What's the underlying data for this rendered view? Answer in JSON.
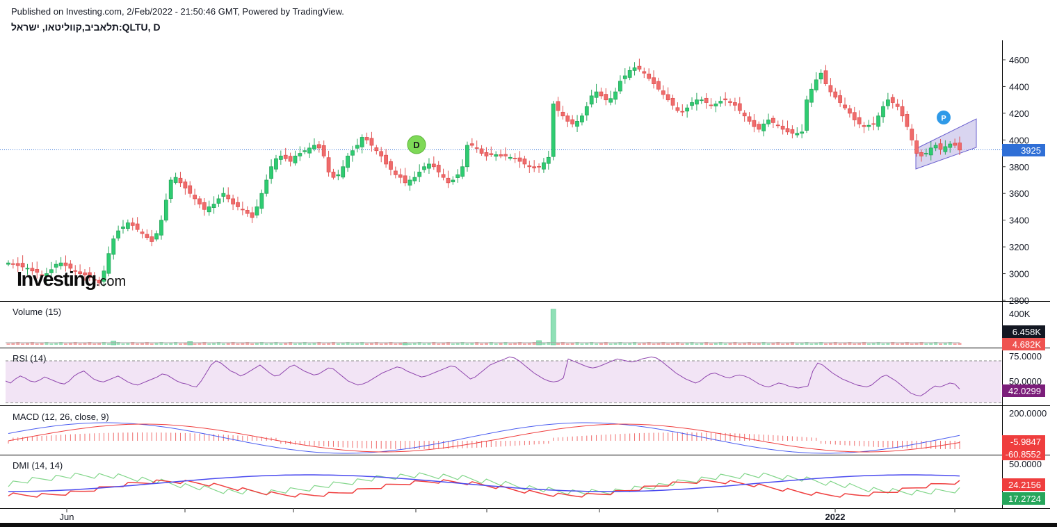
{
  "header": {
    "published": "Published on Investing.com, 2/Feb/2022 - 21:50:46 GMT, Powered by TradingView.",
    "symbol": "תלאביב,קווליטאו, ישראל:QLTU, D"
  },
  "logo": {
    "main": "Investing",
    "suffix": ".com"
  },
  "colors": {
    "up": "#26a65b",
    "down": "#e05252",
    "up_fill": "#2ecc71",
    "down_fill": "#ef6b6b",
    "price_line": "#2f6fd6",
    "rsi": "#8e44ad",
    "macd": "#4a5cf0",
    "signal": "#ef3e3e",
    "dmi_plus": "#82d68a",
    "dmi_minus": "#ef3e3e",
    "adx": "#4a4aef"
  },
  "chart_data": [
    {
      "type": "candlestick",
      "title": "",
      "ylim": [
        2800,
        4700
      ],
      "y_ticks": [
        "4600",
        "4400",
        "4200",
        "4000",
        "3800",
        "3600",
        "3400",
        "3200",
        "3000",
        "2800"
      ],
      "x_labels": [
        "Jun",
        "2022"
      ],
      "last_price": "3925",
      "markers": [
        "D",
        "P"
      ],
      "close_path": [
        3080,
        3070,
        3060,
        3050,
        3040,
        3020,
        3010,
        2990,
        3000,
        3030,
        3070,
        3080,
        3060,
        3040,
        3020,
        3000,
        2990,
        2970,
        2950,
        2930,
        3020,
        3150,
        3260,
        3320,
        3350,
        3380,
        3360,
        3330,
        3300,
        3270,
        3240,
        3300,
        3400,
        3550,
        3700,
        3720,
        3680,
        3640,
        3600,
        3560,
        3520,
        3480,
        3500,
        3520,
        3560,
        3600,
        3560,
        3520,
        3500,
        3480,
        3450,
        3420,
        3500,
        3600,
        3700,
        3800,
        3860,
        3880,
        3860,
        3840,
        3880,
        3900,
        3920,
        3940,
        3960,
        3940,
        3880,
        3760,
        3720,
        3740,
        3800,
        3880,
        3920,
        3960,
        4020,
        4000,
        3960,
        3920,
        3880,
        3820,
        3780,
        3740,
        3720,
        3680,
        3700,
        3720,
        3760,
        3800,
        3820,
        3800,
        3760,
        3720,
        3680,
        3700,
        3740,
        3800,
        3960,
        3960,
        3940,
        3900,
        3880,
        3890,
        3890,
        3880,
        3880,
        3870,
        3860,
        3840,
        3820,
        3800,
        3790,
        3800,
        3830,
        3870,
        4270,
        4220,
        4180,
        4140,
        4120,
        4140,
        4180,
        4250,
        4330,
        4360,
        4330,
        4300,
        4310,
        4360,
        4440,
        4480,
        4520,
        4540,
        4530,
        4500,
        4460,
        4420,
        4380,
        4340,
        4300,
        4260,
        4220,
        4210,
        4240,
        4280,
        4300,
        4300,
        4280,
        4260,
        4270,
        4290,
        4300,
        4280,
        4260,
        4220,
        4180,
        4140,
        4100,
        4080,
        4120,
        4150,
        4130,
        4110,
        4080,
        4060,
        4050,
        4050,
        4060,
        4300,
        4380,
        4450,
        4500,
        4420,
        4360,
        4320,
        4280,
        4240,
        4200,
        4150,
        4120,
        4100,
        4110,
        4120,
        4180,
        4250,
        4300,
        4280,
        4250,
        4180,
        4100,
        4000,
        3900,
        3880,
        3900,
        3940,
        3960,
        3930,
        3950,
        3970,
        3960,
        3925
      ]
    },
    {
      "type": "bar",
      "title": "Volume (15)",
      "y_ticks": [
        "400K"
      ],
      "last_values": [
        "6.458K",
        "4.682K"
      ],
      "spikes": [
        {
          "index": 22,
          "value": 40
        },
        {
          "index": 38,
          "value": 35
        },
        {
          "index": 83,
          "value": 20
        },
        {
          "index": 114,
          "value": 380
        },
        {
          "index": 111,
          "value": 45
        }
      ]
    },
    {
      "type": "line",
      "title": "RSI (14)",
      "y_ticks": [
        "75.0000",
        "50.0000"
      ],
      "last_value": "42.0299",
      "band": [
        30,
        70
      ],
      "values": [
        50,
        48,
        52,
        55,
        53,
        50,
        49,
        51,
        54,
        52,
        50,
        48,
        47,
        50,
        55,
        58,
        60,
        56,
        52,
        50,
        49,
        51,
        53,
        55,
        52,
        49,
        47,
        46,
        48,
        50,
        52,
        54,
        57,
        56,
        53,
        50,
        48,
        47,
        45,
        44,
        50,
        58,
        66,
        70,
        68,
        64,
        60,
        58,
        55,
        57,
        60,
        63,
        66,
        62,
        58,
        55,
        56,
        60,
        64,
        66,
        63,
        60,
        58,
        56,
        57,
        60,
        63,
        62,
        58,
        54,
        50,
        48,
        46,
        47,
        49,
        52,
        55,
        58,
        60,
        62,
        64,
        63,
        60,
        58,
        56,
        54,
        55,
        57,
        59,
        61,
        63,
        65,
        64,
        60,
        56,
        52,
        54,
        58,
        62,
        66,
        68,
        70,
        72,
        74,
        73,
        70,
        66,
        62,
        58,
        55,
        52,
        50,
        49,
        50,
        53,
        72,
        70,
        68,
        66,
        64,
        63,
        64,
        66,
        68,
        70,
        72,
        71,
        70,
        69,
        70,
        72,
        73,
        74,
        73,
        70,
        66,
        62,
        58,
        55,
        52,
        50,
        48,
        50,
        54,
        57,
        58,
        56,
        54,
        53,
        55,
        56,
        55,
        53,
        50,
        47,
        45,
        44,
        46,
        48,
        47,
        45,
        44,
        43,
        44,
        45,
        60,
        68,
        66,
        62,
        58,
        55,
        52,
        50,
        48,
        46,
        45,
        44,
        46,
        50,
        54,
        56,
        53,
        50,
        46,
        42,
        38,
        36,
        35,
        38,
        42,
        45,
        44,
        46,
        48,
        47,
        42
      ]
    },
    {
      "type": "line",
      "title": "MACD (12, 26, close, 9)",
      "y_ticks": [
        "200.0000"
      ],
      "last_values": [
        "-5.9847",
        "-60.8552"
      ]
    },
    {
      "type": "line",
      "title": "DMI (14, 14)",
      "y_ticks": [
        "50.0000"
      ],
      "last_values": [
        "24.2156",
        "17.2724"
      ]
    }
  ]
}
